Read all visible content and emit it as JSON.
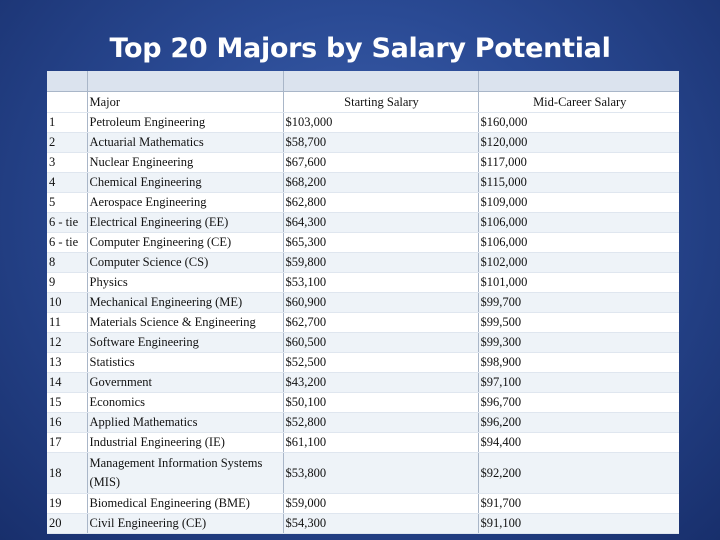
{
  "title": "Top 20 Majors by Salary Potential",
  "headers": {
    "rank": "",
    "major": "Major",
    "starting": "Starting Salary",
    "mid": "Mid-Career Salary"
  },
  "rows": [
    {
      "rank": "1",
      "major": "Petroleum Engineering",
      "starting": "$103,000",
      "mid": "$160,000"
    },
    {
      "rank": "2",
      "major": "Actuarial Mathematics",
      "starting": "$58,700",
      "mid": "$120,000"
    },
    {
      "rank": "3",
      "major": "Nuclear Engineering",
      "starting": "$67,600",
      "mid": "$117,000"
    },
    {
      "rank": "4",
      "major": "Chemical Engineering",
      "starting": "$68,200",
      "mid": "$115,000"
    },
    {
      "rank": "5",
      "major": "Aerospace Engineering",
      "starting": "$62,800",
      "mid": "$109,000"
    },
    {
      "rank": "6 - tie",
      "major": "Electrical Engineering (EE)",
      "starting": "$64,300",
      "mid": "$106,000"
    },
    {
      "rank": "6 - tie",
      "major": "Computer Engineering (CE)",
      "starting": "$65,300",
      "mid": "$106,000"
    },
    {
      "rank": "8",
      "major": "Computer Science (CS)",
      "starting": "$59,800",
      "mid": "$102,000"
    },
    {
      "rank": "9",
      "major": "Physics",
      "starting": "$53,100",
      "mid": "$101,000"
    },
    {
      "rank": "10",
      "major": "Mechanical Engineering (ME)",
      "starting": "$60,900",
      "mid": "$99,700"
    },
    {
      "rank": "11",
      "major": "Materials Science & Engineering",
      "starting": "$62,700",
      "mid": "$99,500"
    },
    {
      "rank": "12",
      "major": "Software Engineering",
      "starting": "$60,500",
      "mid": "$99,300"
    },
    {
      "rank": "13",
      "major": "Statistics",
      "starting": "$52,500",
      "mid": "$98,900"
    },
    {
      "rank": "14",
      "major": "Government",
      "starting": "$43,200",
      "mid": "$97,100"
    },
    {
      "rank": "15",
      "major": "Economics",
      "starting": "$50,100",
      "mid": "$96,700"
    },
    {
      "rank": "16",
      "major": "Applied Mathematics",
      "starting": "$52,800",
      "mid": "$96,200"
    },
    {
      "rank": "17",
      "major": "Industrial Engineering (IE)",
      "starting": "$61,100",
      "mid": "$94,400"
    },
    {
      "rank": "18",
      "major": "Management Information Systems (MIS)",
      "starting": "$53,800",
      "mid": "$92,200"
    },
    {
      "rank": "19",
      "major": "Biomedical Engineering (BME)",
      "starting": "$59,000",
      "mid": "$91,700"
    },
    {
      "rank": "20",
      "major": "Civil Engineering (CE)",
      "starting": "$54,300",
      "mid": "$91,100"
    }
  ]
}
